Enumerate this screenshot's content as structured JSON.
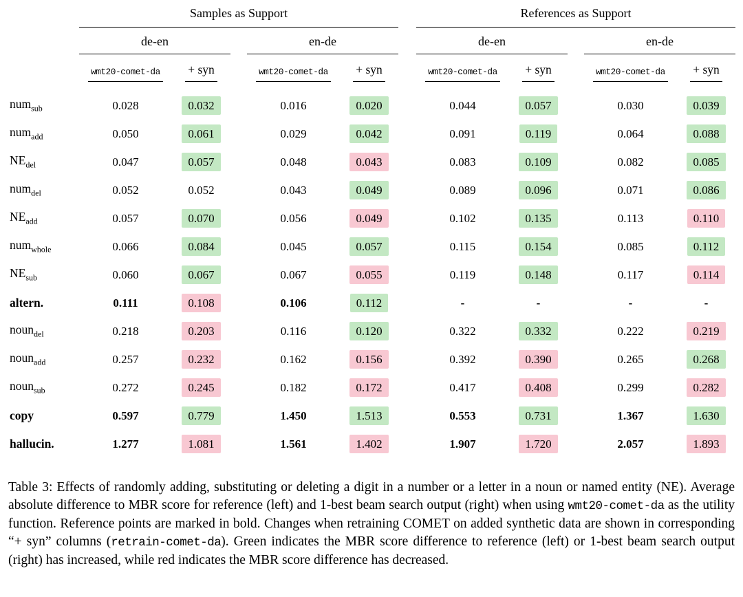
{
  "colors": {
    "green": "#c3e8c3",
    "red": "#f8c8d2"
  },
  "header": {
    "groups": [
      "Samples as Support",
      "References as Support"
    ],
    "subgroups": [
      "de-en",
      "en-de",
      "de-en",
      "en-de"
    ],
    "metric": "wmt20-comet-da",
    "syn": "+ syn"
  },
  "table": {
    "rows": [
      {
        "label": {
          "base": "num",
          "sub": "sub"
        },
        "bold": false,
        "cells": [
          {
            "v": "0.028"
          },
          {
            "v": "0.032",
            "bg": "green"
          },
          {
            "v": "0.016"
          },
          {
            "v": "0.020",
            "bg": "green"
          },
          {
            "v": "0.044"
          },
          {
            "v": "0.057",
            "bg": "green"
          },
          {
            "v": "0.030"
          },
          {
            "v": "0.039",
            "bg": "green"
          }
        ]
      },
      {
        "label": {
          "base": "num",
          "sub": "add"
        },
        "bold": false,
        "cells": [
          {
            "v": "0.050"
          },
          {
            "v": "0.061",
            "bg": "green"
          },
          {
            "v": "0.029"
          },
          {
            "v": "0.042",
            "bg": "green"
          },
          {
            "v": "0.091"
          },
          {
            "v": "0.119",
            "bg": "green"
          },
          {
            "v": "0.064"
          },
          {
            "v": "0.088",
            "bg": "green"
          }
        ]
      },
      {
        "label": {
          "base": "NE",
          "sub": "del"
        },
        "bold": false,
        "cells": [
          {
            "v": "0.047"
          },
          {
            "v": "0.057",
            "bg": "green"
          },
          {
            "v": "0.048"
          },
          {
            "v": "0.043",
            "bg": "red"
          },
          {
            "v": "0.083"
          },
          {
            "v": "0.109",
            "bg": "green"
          },
          {
            "v": "0.082"
          },
          {
            "v": "0.085",
            "bg": "green"
          }
        ]
      },
      {
        "label": {
          "base": "num",
          "sub": "del"
        },
        "bold": false,
        "cells": [
          {
            "v": "0.052"
          },
          {
            "v": "0.052"
          },
          {
            "v": "0.043"
          },
          {
            "v": "0.049",
            "bg": "green"
          },
          {
            "v": "0.089"
          },
          {
            "v": "0.096",
            "bg": "green"
          },
          {
            "v": "0.071"
          },
          {
            "v": "0.086",
            "bg": "green"
          }
        ]
      },
      {
        "label": {
          "base": "NE",
          "sub": "add"
        },
        "bold": false,
        "cells": [
          {
            "v": "0.057"
          },
          {
            "v": "0.070",
            "bg": "green"
          },
          {
            "v": "0.056"
          },
          {
            "v": "0.049",
            "bg": "red"
          },
          {
            "v": "0.102"
          },
          {
            "v": "0.135",
            "bg": "green"
          },
          {
            "v": "0.113"
          },
          {
            "v": "0.110",
            "bg": "red"
          }
        ]
      },
      {
        "label": {
          "base": "num",
          "sub": "whole"
        },
        "bold": false,
        "cells": [
          {
            "v": "0.066"
          },
          {
            "v": "0.084",
            "bg": "green"
          },
          {
            "v": "0.045"
          },
          {
            "v": "0.057",
            "bg": "green"
          },
          {
            "v": "0.115"
          },
          {
            "v": "0.154",
            "bg": "green"
          },
          {
            "v": "0.085"
          },
          {
            "v": "0.112",
            "bg": "green"
          }
        ]
      },
      {
        "label": {
          "base": "NE",
          "sub": "sub"
        },
        "bold": false,
        "cells": [
          {
            "v": "0.060"
          },
          {
            "v": "0.067",
            "bg": "green"
          },
          {
            "v": "0.067"
          },
          {
            "v": "0.055",
            "bg": "red"
          },
          {
            "v": "0.119"
          },
          {
            "v": "0.148",
            "bg": "green"
          },
          {
            "v": "0.117"
          },
          {
            "v": "0.114",
            "bg": "red"
          }
        ]
      },
      {
        "label": {
          "base": "altern.",
          "sub": ""
        },
        "bold": true,
        "cells": [
          {
            "v": "0.111",
            "b": true
          },
          {
            "v": "0.108",
            "bg": "red"
          },
          {
            "v": "0.106",
            "b": true
          },
          {
            "v": "0.112",
            "bg": "green"
          },
          {
            "v": "-",
            "b": true
          },
          {
            "v": "-",
            "b": true
          },
          {
            "v": "-",
            "b": true
          },
          {
            "v": "-",
            "b": true
          }
        ]
      },
      {
        "label": {
          "base": "noun",
          "sub": "del"
        },
        "bold": false,
        "cells": [
          {
            "v": "0.218"
          },
          {
            "v": "0.203",
            "bg": "red"
          },
          {
            "v": "0.116"
          },
          {
            "v": "0.120",
            "bg": "green"
          },
          {
            "v": "0.322"
          },
          {
            "v": "0.332",
            "bg": "green"
          },
          {
            "v": "0.222"
          },
          {
            "v": "0.219",
            "bg": "red"
          }
        ]
      },
      {
        "label": {
          "base": "noun",
          "sub": "add"
        },
        "bold": false,
        "cells": [
          {
            "v": "0.257"
          },
          {
            "v": "0.232",
            "bg": "red"
          },
          {
            "v": "0.162"
          },
          {
            "v": "0.156",
            "bg": "red"
          },
          {
            "v": "0.392"
          },
          {
            "v": "0.390",
            "bg": "red"
          },
          {
            "v": "0.265"
          },
          {
            "v": "0.268",
            "bg": "green"
          }
        ]
      },
      {
        "label": {
          "base": "noun",
          "sub": "sub"
        },
        "bold": false,
        "cells": [
          {
            "v": "0.272"
          },
          {
            "v": "0.245",
            "bg": "red"
          },
          {
            "v": "0.182"
          },
          {
            "v": "0.172",
            "bg": "red"
          },
          {
            "v": "0.417"
          },
          {
            "v": "0.408",
            "bg": "red"
          },
          {
            "v": "0.299"
          },
          {
            "v": "0.282",
            "bg": "red"
          }
        ]
      },
      {
        "label": {
          "base": "copy",
          "sub": ""
        },
        "bold": true,
        "cells": [
          {
            "v": "0.597",
            "b": true
          },
          {
            "v": "0.779",
            "bg": "green"
          },
          {
            "v": "1.450",
            "b": true
          },
          {
            "v": "1.513",
            "bg": "green"
          },
          {
            "v": "0.553",
            "b": true
          },
          {
            "v": "0.731",
            "bg": "green"
          },
          {
            "v": "1.367",
            "b": true
          },
          {
            "v": "1.630",
            "bg": "green"
          }
        ]
      },
      {
        "label": {
          "base": "hallucin.",
          "sub": ""
        },
        "bold": true,
        "cells": [
          {
            "v": "1.277",
            "b": true
          },
          {
            "v": "1.081",
            "bg": "red"
          },
          {
            "v": "1.561",
            "b": true
          },
          {
            "v": "1.402",
            "bg": "red"
          },
          {
            "v": "1.907",
            "b": true
          },
          {
            "v": "1.720",
            "bg": "red"
          },
          {
            "v": "2.057",
            "b": true
          },
          {
            "v": "1.893",
            "bg": "red"
          }
        ]
      }
    ]
  },
  "caption": {
    "segments": [
      {
        "t": "Table 3: Effects of randomly adding, substituting or deleting a digit in a number or a letter in a noun or named entity (NE). Average absolute difference to MBR score for reference (left) and 1-best beam search output (right) when using ",
        "mono": false
      },
      {
        "t": "wmt20-comet-da",
        "mono": true
      },
      {
        "t": " as the utility function. Reference points are marked in bold. Changes when retraining COMET on added synthetic data are shown in corresponding “+ syn” columns (",
        "mono": false
      },
      {
        "t": "retrain-comet-da",
        "mono": true
      },
      {
        "t": "). Green indicates the MBR score difference to reference (left) or 1-best beam search output (right) has increased, while red indicates the MBR score difference has decreased.",
        "mono": false
      }
    ]
  }
}
